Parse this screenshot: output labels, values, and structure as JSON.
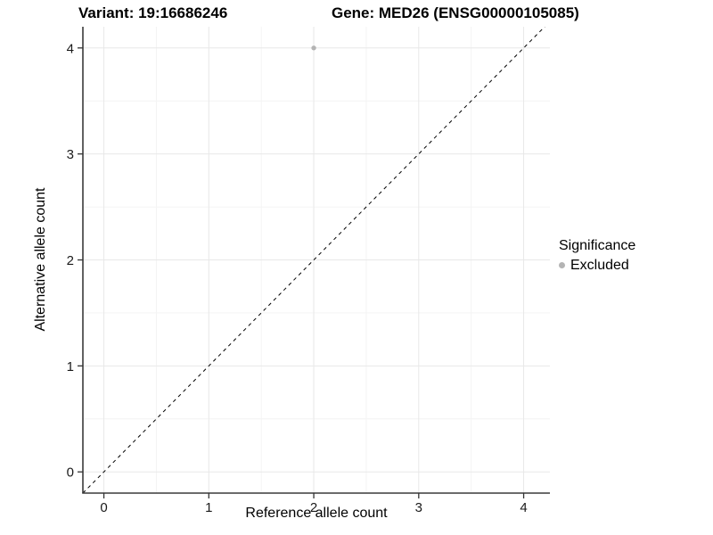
{
  "figure": {
    "title_variant": "Variant: 19:16686246",
    "title_gene": "Gene: MED26 (ENSG00000105085)"
  },
  "axes": {
    "x_title": "Reference allele count",
    "y_title": "Alternative allele count"
  },
  "legend": {
    "title": "Significance",
    "items": [
      {
        "label": "Excluded",
        "color": "#b4b4b4"
      }
    ]
  },
  "chart_data": {
    "type": "scatter",
    "title": "Variant: 19:16686246   Gene: MED26 (ENSG00000105085)",
    "xlabel": "Reference allele count",
    "ylabel": "Alternative allele count",
    "xlim": [
      -0.2,
      4.25
    ],
    "ylim": [
      -0.2,
      4.2
    ],
    "xticks": [
      0,
      1,
      2,
      3,
      4
    ],
    "yticks": [
      0,
      1,
      2,
      3,
      4
    ],
    "minor_grid_step": 0.5,
    "grid": "on",
    "legend_position": "right",
    "series": [
      {
        "name": "Excluded",
        "color": "#b4b4b4",
        "points": [
          {
            "x": 2,
            "y": 4
          }
        ]
      }
    ],
    "reference_line": {
      "type": "identity",
      "slope": 1,
      "intercept": 0,
      "style": "dashed",
      "color": "#000000"
    },
    "colors": {
      "background": "#ffffff",
      "grid_major": "#e8e8e8",
      "grid_minor": "#f4f4f4",
      "axis_line": "#3a3a3a",
      "tick_mark": "#333333",
      "tick_label": "#1a1a1a",
      "point": "#b4b4b4"
    }
  }
}
